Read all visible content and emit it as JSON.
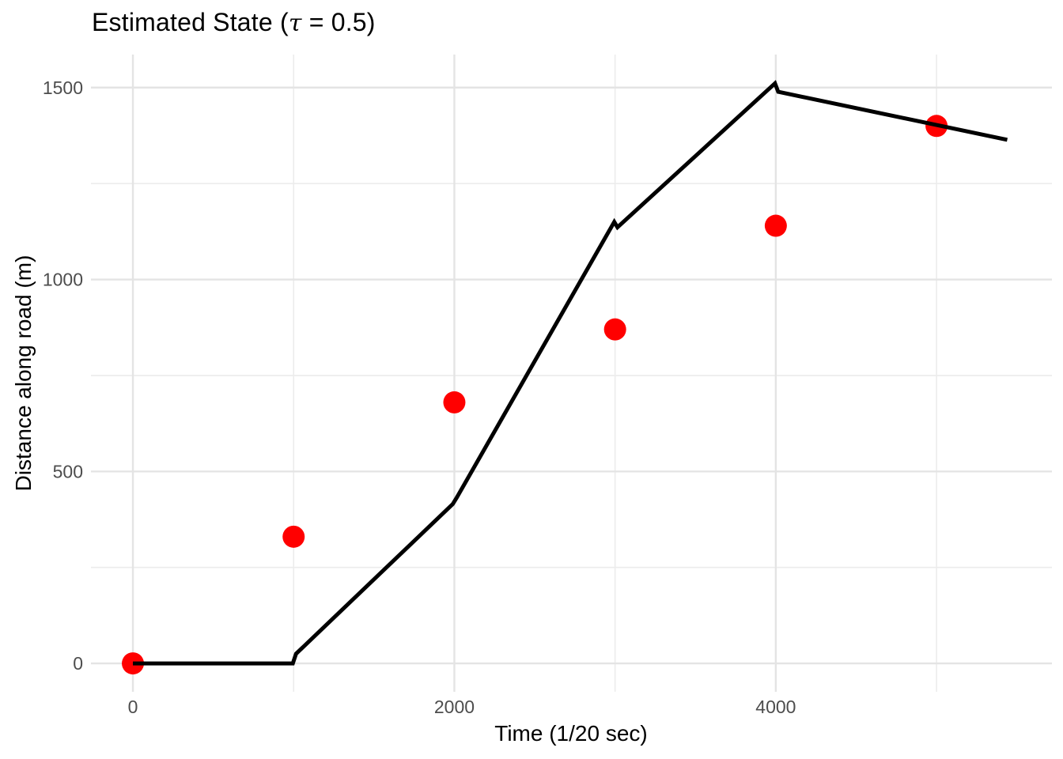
{
  "title": {
    "prefix": "Estimated State (",
    "tau": "τ",
    "suffix": " = 0.5)"
  },
  "axes": {
    "x": {
      "title": "Time (1/20 sec)"
    },
    "y": {
      "title": "Distance along road (m)"
    }
  },
  "chart_data": {
    "type": "line",
    "title": "Estimated State (τ = 0.5)",
    "xlabel": "Time (1/20 sec)",
    "ylabel": "Distance along road (m)",
    "xlim": [
      -261,
      5718
    ],
    "ylim": [
      -74,
      1586
    ],
    "grid": {
      "visible": true,
      "major_color": "#e4e4e4",
      "minor_color": "#ececec"
    },
    "x_axis": {
      "major_ticks": [
        0,
        2000,
        4000
      ],
      "major_tick_labels": [
        "0",
        "2000",
        "4000"
      ],
      "minor_ticks": [
        1000,
        3000,
        5000
      ]
    },
    "y_axis": {
      "major_ticks": [
        0,
        500,
        1000,
        1500
      ],
      "major_tick_labels": [
        "0",
        "500",
        "1000",
        "1500"
      ],
      "minor_ticks": [
        250,
        750,
        1250
      ]
    },
    "tick_label_color": "#4d4d4d",
    "series": [
      {
        "name": "estimated-state-line",
        "type": "line",
        "color": "#000000",
        "stroke_width": 5,
        "points": [
          [
            0,
            0
          ],
          [
            995,
            0
          ],
          [
            1015,
            25
          ],
          [
            1990,
            415
          ],
          [
            2015,
            432
          ],
          [
            2995,
            1150
          ],
          [
            3015,
            1136
          ],
          [
            3995,
            1511
          ],
          [
            4015,
            1489
          ],
          [
            5440,
            1364
          ]
        ]
      },
      {
        "name": "measurements",
        "type": "scatter",
        "color": "#ff0000",
        "radius": 14,
        "points": [
          [
            0,
            0
          ],
          [
            1000,
            330
          ],
          [
            2000,
            680
          ],
          [
            3000,
            870
          ],
          [
            4000,
            1140
          ],
          [
            5000,
            1400
          ]
        ]
      }
    ]
  }
}
